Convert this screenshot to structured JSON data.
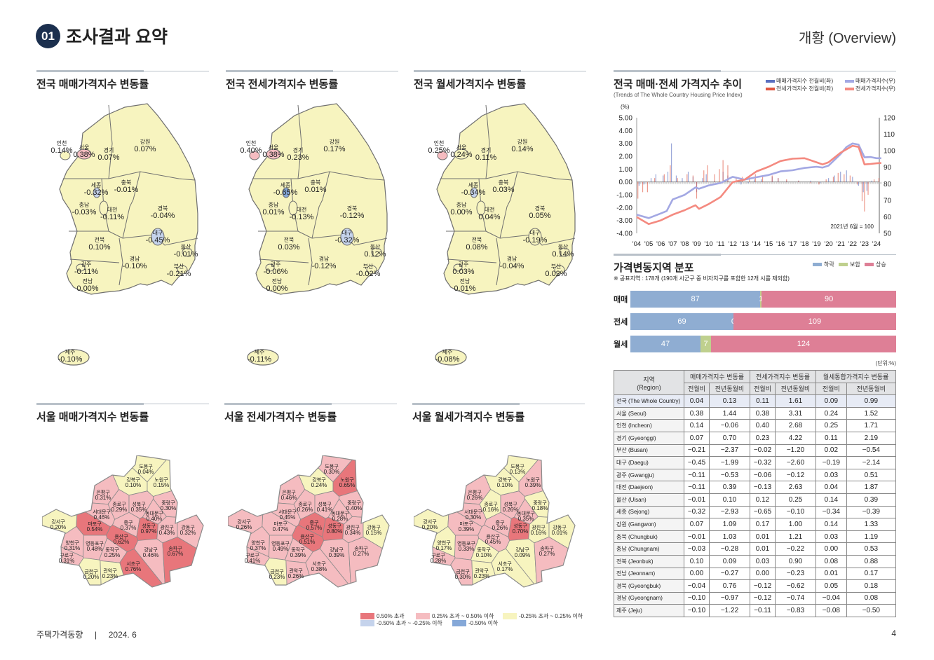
{
  "header": {
    "badge": "01",
    "title": "조사결과 요약",
    "overview": "개황 (Overview)"
  },
  "national_maps": [
    {
      "title": "전국 매매가격지수 변동률",
      "regions": [
        {
          "name": "인천",
          "value": "0.14%"
        },
        {
          "name": "서울",
          "value": "0.38%"
        },
        {
          "name": "경기",
          "value": "0.07%"
        },
        {
          "name": "강원",
          "value": "0.07%"
        },
        {
          "name": "세종",
          "value": "-0.32%"
        },
        {
          "name": "충북",
          "value": "-0.01%"
        },
        {
          "name": "충남",
          "value": "-0.03%"
        },
        {
          "name": "대전",
          "value": "-0.11%"
        },
        {
          "name": "경북",
          "value": "-0.04%"
        },
        {
          "name": "대구",
          "value": "-0.45%"
        },
        {
          "name": "전북",
          "value": "0.10%"
        },
        {
          "name": "울산",
          "value": "-0.01%"
        },
        {
          "name": "경남",
          "value": "-0.10%"
        },
        {
          "name": "광주",
          "value": "-0.11%"
        },
        {
          "name": "부산",
          "value": "-0.21%"
        },
        {
          "name": "전남",
          "value": "0.00%"
        },
        {
          "name": "제주",
          "value": "-0.10%"
        }
      ]
    },
    {
      "title": "전국 전세가격지수 변동률",
      "regions": [
        {
          "name": "인천",
          "value": "0.40%"
        },
        {
          "name": "서울",
          "value": "0.38%"
        },
        {
          "name": "경기",
          "value": "0.23%"
        },
        {
          "name": "강원",
          "value": "0.17%"
        },
        {
          "name": "세종",
          "value": "-0.65%"
        },
        {
          "name": "충북",
          "value": "0.01%"
        },
        {
          "name": "충남",
          "value": "0.01%"
        },
        {
          "name": "대전",
          "value": "-0.13%"
        },
        {
          "name": "경북",
          "value": "-0.12%"
        },
        {
          "name": "대구",
          "value": "-0.32%"
        },
        {
          "name": "전북",
          "value": "0.03%"
        },
        {
          "name": "울산",
          "value": "0.12%"
        },
        {
          "name": "경남",
          "value": "-0.12%"
        },
        {
          "name": "광주",
          "value": "-0.06%"
        },
        {
          "name": "부산",
          "value": "-0.02%"
        },
        {
          "name": "전남",
          "value": "0.00%"
        },
        {
          "name": "제주",
          "value": "-0.11%"
        }
      ]
    },
    {
      "title": "전국 월세가격지수 변동률",
      "regions": [
        {
          "name": "인천",
          "value": "0.25%"
        },
        {
          "name": "서울",
          "value": "0.24%"
        },
        {
          "name": "경기",
          "value": "0.11%"
        },
        {
          "name": "강원",
          "value": "0.14%"
        },
        {
          "name": "세종",
          "value": "-0.34%"
        },
        {
          "name": "충북",
          "value": "0.03%"
        },
        {
          "name": "충남",
          "value": "0.00%"
        },
        {
          "name": "대전",
          "value": "0.04%"
        },
        {
          "name": "경북",
          "value": "0.05%"
        },
        {
          "name": "대구",
          "value": "-0.19%"
        },
        {
          "name": "전북",
          "value": "0.08%"
        },
        {
          "name": "울산",
          "value": "0.14%"
        },
        {
          "name": "경남",
          "value": "-0.04%"
        },
        {
          "name": "광주",
          "value": "0.03%"
        },
        {
          "name": "부산",
          "value": "0.02%"
        },
        {
          "name": "전남",
          "value": "0.01%"
        },
        {
          "name": "제주",
          "value": "-0.08%"
        }
      ]
    }
  ],
  "seoul_districts": [
    "도봉구",
    "강북구",
    "노원구",
    "은평구",
    "종로구",
    "성북구",
    "중랑구",
    "서대문구",
    "동대문구",
    "강서구",
    "마포구",
    "중구",
    "성동구",
    "광진구",
    "강동구",
    "용산구",
    "양천구",
    "영등포구",
    "동작구",
    "강남구",
    "송파구",
    "구로구",
    "서초구",
    "금천구",
    "관악구"
  ],
  "seoul_maps": [
    {
      "title": "서울 매매가격지수 변동률",
      "values": [
        "0.04%",
        "0.10%",
        "0.15%",
        "0.31%",
        "0.29%",
        "0.35%",
        "0.30%",
        "0.46%",
        "0.40%",
        "0.20%",
        "0.54%",
        "0.37%",
        "0.97%",
        "0.43%",
        "0.32%",
        "0.62%",
        "0.31%",
        "0.48%",
        "0.25%",
        "0.46%",
        "0.67%",
        "0.31%",
        "0.76%",
        "0.20%",
        "0.23%"
      ]
    },
    {
      "title": "서울 전세가격지수 변동률",
      "values": [
        "0.30%",
        "0.24%",
        "0.65%",
        "0.46%",
        "0.26%",
        "0.41%",
        "0.40%",
        "0.45%",
        "0.28%",
        "0.26%",
        "0.47%",
        "0.57%",
        "0.80%",
        "0.34%",
        "0.15%",
        "0.51%",
        "0.37%",
        "0.49%",
        "0.39%",
        "0.39%",
        "0.27%",
        "0.41%",
        "0.38%",
        "0.23%",
        "0.26%"
      ]
    },
    {
      "title": "서울 월세가격지수 변동률",
      "values": [
        "0.13%",
        "0.10%",
        "0.39%",
        "0.26%",
        "0.16%",
        "0.26%",
        "0.18%",
        "0.30%",
        "0.35%",
        "0.20%",
        "0.39%",
        "0.26%",
        "0.70%",
        "0.16%",
        "0.01%",
        "0.45%",
        "0.17%",
        "0.33%",
        "0.10%",
        "0.09%",
        "0.27%",
        "0.28%",
        "0.17%",
        "0.30%",
        "0.23%"
      ]
    }
  ],
  "map_legend": [
    {
      "label": "0.50% 초과",
      "color": "#e8767b"
    },
    {
      "label": "0.25% 초과 ~ 0.50% 이하",
      "color": "#f5bcc0"
    },
    {
      "label": "-0.25% 초과 ~ 0.25% 이하",
      "color": "#f7f4bf"
    },
    {
      "label": "-0.50% 초과 ~ -0.25% 이하",
      "color": "#c5d3ec"
    },
    {
      "label": "-0.50% 이하",
      "color": "#85a8d8"
    }
  ],
  "trend": {
    "title": "전국 매매·전세 가격지수 추이",
    "subtitle": "(Trends of The Whole Country Housing Price Index)",
    "unit": "(%)",
    "base_note": "2021년 6월 = 100",
    "legend": [
      {
        "label": "매매가격지수 전월비(좌)",
        "color": "#5a6fbf"
      },
      {
        "label": "전세가격지수 전월비(좌)",
        "color": "#e0553f"
      },
      {
        "label": "매매가격지수(우)",
        "color": "#a3a8e3"
      },
      {
        "label": "전세가격지수(우)",
        "color": "#f48a80"
      }
    ]
  },
  "chart_data": {
    "type": "line",
    "title": "전국 매매·전세 가격지수 추이",
    "left_axis": {
      "label": "(%)",
      "range": [
        -4,
        5
      ],
      "ticks": [
        "5.00",
        "4.00",
        "3.00",
        "2.00",
        "1.00",
        "0.00",
        "-1.00",
        "-2.00",
        "-3.00",
        "-4.00"
      ]
    },
    "right_axis": {
      "range": [
        50,
        120
      ],
      "ticks": [
        "120",
        "110",
        "100",
        "90",
        "80",
        "70",
        "60",
        "50"
      ]
    },
    "x_ticks": [
      "'04",
      "'05",
      "'06",
      "'07",
      "'08",
      "'09",
      "'10",
      "'11",
      "'12",
      "'13",
      "'14",
      "'15",
      "'16",
      "'17",
      "'18",
      "'19",
      "'20",
      "'21",
      "'22",
      "'23",
      "'24"
    ],
    "x_range": [
      2004,
      2024.4
    ],
    "series": [
      {
        "name": "매매가격지수(우)",
        "axis": "right",
        "color": "#a3a8e3",
        "x": [
          2004,
          2005,
          2006,
          2006.5,
          2007,
          2008,
          2008.9,
          2009.2,
          2010,
          2011,
          2012,
          2013,
          2014,
          2015,
          2016,
          2017,
          2018,
          2019,
          2019.5,
          2020,
          2021,
          2021.5,
          2022,
          2022.5,
          2023,
          2023.5,
          2024,
          2024.4
        ],
        "y": [
          61.3,
          59.2,
          62,
          63.5,
          70.5,
          73.3,
          77.8,
          77,
          79,
          80.5,
          84.2,
          82.5,
          84,
          85.3,
          87.5,
          88.2,
          89.6,
          90.3,
          89.8,
          91,
          98,
          102.3,
          104.4,
          103.7,
          96,
          96.2,
          95.5,
          95.5
        ]
      },
      {
        "name": "전세가격지수(우)",
        "axis": "right",
        "color": "#f48a80",
        "x": [
          2004,
          2005,
          2006,
          2007,
          2008,
          2008.9,
          2009.2,
          2010,
          2011,
          2012,
          2013,
          2014,
          2015,
          2016,
          2017,
          2018,
          2019,
          2019.5,
          2020,
          2021,
          2022,
          2022.5,
          2023,
          2023.5,
          2024,
          2024.4
        ],
        "y": [
          59.9,
          55.6,
          57.8,
          61.3,
          64,
          67,
          64.8,
          67.7,
          72,
          81,
          82.5,
          87.5,
          90.3,
          93.8,
          95.2,
          95.5,
          93,
          91.7,
          93,
          98.8,
          103,
          102.3,
          91.7,
          92,
          92.4,
          92.6
        ]
      },
      {
        "name": "매매가격지수 전월비(좌)",
        "axis": "left",
        "type": "bar",
        "color": "#5a6fbf",
        "x": [
          2004.2,
          2004.6,
          2005.2,
          2005.6,
          2006.2,
          2006.6,
          2006.9,
          2007.3,
          2007.8,
          2008.3,
          2008.7,
          2009.0,
          2009.5,
          2009.8,
          2010.5,
          2011.2,
          2011.6,
          2012.3,
          2012.7,
          2013.3,
          2013.8,
          2014.4,
          2015.3,
          2015.8,
          2016.5,
          2017.5,
          2018.5,
          2019.3,
          2020.0,
          2020.5,
          2021.0,
          2021.5,
          2022.0,
          2022.5,
          2022.9,
          2023.2,
          2023.6,
          2024.2
        ],
        "y": [
          -0.3,
          -0.2,
          0.3,
          0.6,
          0.5,
          0.8,
          3.0,
          0.5,
          0.3,
          0.8,
          0.4,
          -0.8,
          0.3,
          0.6,
          0.1,
          0.8,
          0.5,
          0.1,
          -0.2,
          -0.1,
          0.2,
          0.2,
          0.4,
          0.3,
          0.1,
          0.1,
          0.1,
          -0.1,
          0.3,
          0.5,
          0.8,
          0.9,
          0.4,
          -0.3,
          -0.8,
          -0.7,
          0.1,
          0.0
        ]
      },
      {
        "name": "전세가격지수 전월비(좌)",
        "axis": "left",
        "type": "bar",
        "color": "#e0553f",
        "x": [
          2004.1,
          2004.5,
          2004.9,
          2005.5,
          2006.3,
          2006.8,
          2007.4,
          2008.2,
          2008.7,
          2009.0,
          2009.6,
          2009.9,
          2010.5,
          2010.9,
          2011.2,
          2011.6,
          2012.3,
          2012.8,
          2013.4,
          2013.9,
          2014.5,
          2015.3,
          2015.8,
          2016.5,
          2017.5,
          2018.5,
          2019.2,
          2019.8,
          2020.4,
          2020.8,
          2021.3,
          2021.8,
          2022.4,
          2022.8,
          2023.0,
          2023.3,
          2023.8,
          2024.2
        ],
        "y": [
          -1.3,
          -0.8,
          -0.8,
          0.3,
          0.6,
          1.3,
          0.3,
          0.6,
          0.5,
          -1.3,
          0.9,
          1.3,
          0.6,
          1.0,
          1.7,
          1.3,
          0.4,
          0.4,
          0.5,
          0.6,
          0.4,
          0.5,
          0.3,
          0.2,
          0.1,
          -0.1,
          -0.2,
          0.2,
          0.4,
          0.7,
          0.6,
          0.5,
          -0.2,
          -1.5,
          -2.3,
          -1.0,
          0.2,
          0.3
        ]
      }
    ],
    "annotation": "2021년 6월 = 100"
  },
  "distribution": {
    "title": "가격변동지역 분포",
    "note": "※ 공표지역 : 178개 (190개 시군구 중 비자치구를 포함한 12개 시를 제외함)",
    "legend": [
      {
        "label": "하락",
        "color": "#8fadd2"
      },
      {
        "label": "보합",
        "color": "#bfd08e"
      },
      {
        "label": "상승",
        "color": "#de7f96"
      }
    ],
    "rows": [
      {
        "label": "매매",
        "down": 87,
        "flat": 1,
        "up": 90
      },
      {
        "label": "전세",
        "down": 69,
        "flat": 0,
        "up": 109
      },
      {
        "label": "월세",
        "down": 47,
        "flat": 7,
        "up": 124
      }
    ],
    "unit": "(단위:%)"
  },
  "table": {
    "region_header": "지역",
    "region_header_en": "(Region)",
    "groups": [
      "매매가격지수 변동률",
      "전세가격지수 변동률",
      "월세통합가격지수 변동률"
    ],
    "subheaders": [
      "전월비",
      "전년동월비",
      "전월비",
      "전년동월비",
      "전월비",
      "전년동월비"
    ],
    "rows": [
      {
        "region": "전국 (The Whole Country)",
        "values": [
          "0.04",
          "0.13",
          "0.11",
          "1.61",
          "0.09",
          "0.99"
        ]
      },
      {
        "region": "서울 (Seoul)",
        "values": [
          "0.38",
          "1.44",
          "0.38",
          "3.31",
          "0.24",
          "1.52"
        ]
      },
      {
        "region": "인천 (Incheon)",
        "values": [
          "0.14",
          "−0.06",
          "0.40",
          "2.68",
          "0.25",
          "1.71"
        ]
      },
      {
        "region": "경기 (Gyeonggi)",
        "values": [
          "0.07",
          "0.70",
          "0.23",
          "4.22",
          "0.11",
          "2.19"
        ]
      },
      {
        "region": "부산 (Busan)",
        "values": [
          "−0.21",
          "−2.37",
          "−0.02",
          "−1.20",
          "0.02",
          "−0.54"
        ]
      },
      {
        "region": "대구 (Daegu)",
        "values": [
          "−0.45",
          "−1.99",
          "−0.32",
          "−2.60",
          "−0.19",
          "−2.14"
        ]
      },
      {
        "region": "광주 (Gwangju)",
        "values": [
          "−0.11",
          "−0.53",
          "−0.06",
          "−0.12",
          "0.03",
          "0.51"
        ]
      },
      {
        "region": "대전 (Daejeon)",
        "values": [
          "−0.11",
          "0.39",
          "−0.13",
          "2.63",
          "0.04",
          "1.87"
        ]
      },
      {
        "region": "울산 (Ulsan)",
        "values": [
          "−0.01",
          "0.10",
          "0.12",
          "0.25",
          "0.14",
          "0.39"
        ]
      },
      {
        "region": "세종 (Sejong)",
        "values": [
          "−0.32",
          "−2.93",
          "−0.65",
          "−0.10",
          "−0.34",
          "−0.39"
        ]
      },
      {
        "region": "강원 (Gangwon)",
        "values": [
          "0.07",
          "1.09",
          "0.17",
          "1.00",
          "0.14",
          "1.33"
        ]
      },
      {
        "region": "충북 (Chungbuk)",
        "values": [
          "−0.01",
          "1.03",
          "0.01",
          "1.21",
          "0.03",
          "1.19"
        ]
      },
      {
        "region": "충남 (Chungnam)",
        "values": [
          "−0.03",
          "−0.28",
          "0.01",
          "−0.22",
          "0.00",
          "0.53"
        ]
      },
      {
        "region": "전북 (Jeonbuk)",
        "values": [
          "0.10",
          "0.09",
          "0.03",
          "0.90",
          "0.08",
          "0.88"
        ]
      },
      {
        "region": "전남 (Jeonnam)",
        "values": [
          "0.00",
          "−0.27",
          "0.00",
          "−0.23",
          "0.01",
          "0.17"
        ]
      },
      {
        "region": "경북 (Gyeongbuk)",
        "values": [
          "−0.04",
          "0.76",
          "−0.12",
          "−0.62",
          "0.05",
          "0.18"
        ]
      },
      {
        "region": "경남 (Gyeongnam)",
        "values": [
          "−0.10",
          "−0.97",
          "−0.12",
          "−0.74",
          "−0.04",
          "0.08"
        ]
      },
      {
        "region": "제주 (Jeju)",
        "values": [
          "−0.10",
          "−1.22",
          "−0.11",
          "−0.83",
          "−0.08",
          "−0.50"
        ]
      }
    ]
  },
  "footer": {
    "publication": "주택가격동향",
    "separator": "|",
    "date": "2024. 6",
    "page": "4"
  }
}
